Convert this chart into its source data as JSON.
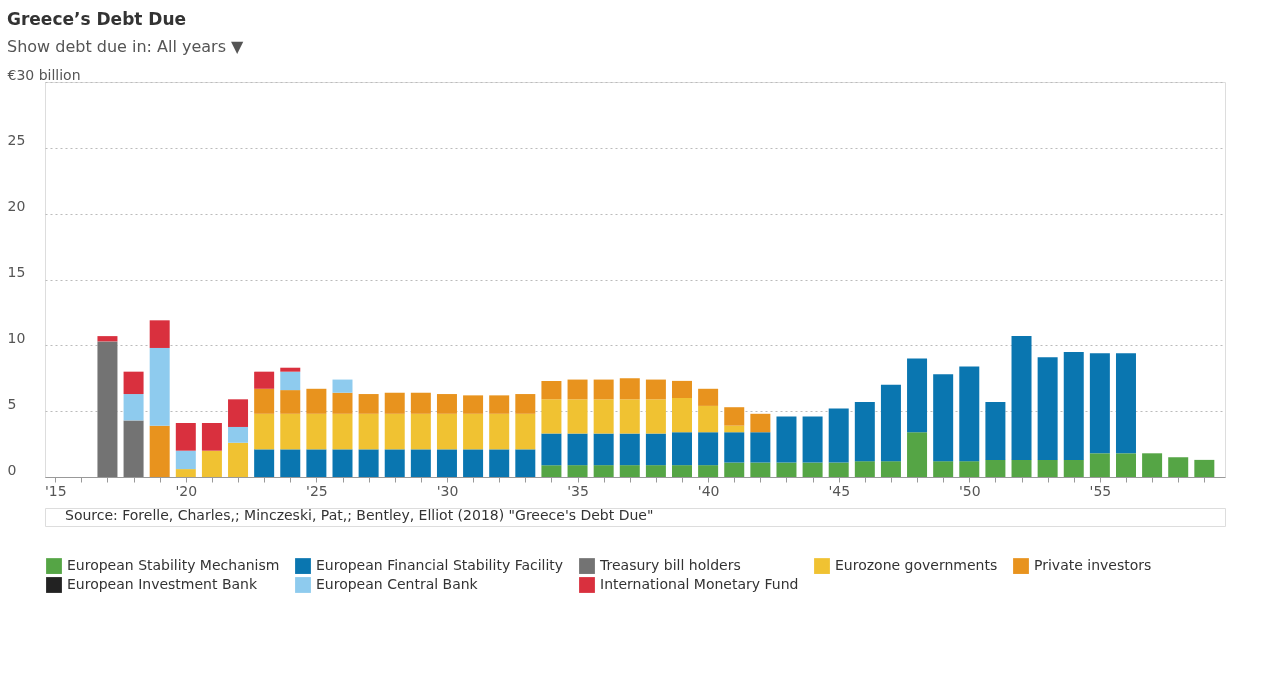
{
  "chart_data": {
    "type": "bar",
    "title": "Greece’s Debt Due",
    "subtitle": "Show debt due in: All years ▼",
    "stacked": true,
    "x": [
      2017,
      2018,
      2019,
      2020,
      2021,
      2022,
      2023,
      2024,
      2025,
      2026,
      2027,
      2028,
      2029,
      2030,
      2031,
      2032,
      2033,
      2034,
      2035,
      2036,
      2037,
      2038,
      2039,
      2040,
      2041,
      2042,
      2043,
      2044,
      2045,
      2046,
      2047,
      2048,
      2049,
      2050,
      2051,
      2052,
      2053,
      2054,
      2055,
      2056,
      2057,
      2058,
      2059
    ],
    "series": [
      {
        "name": "European Stability Mechanism",
        "color": "#55a545",
        "values": [
          null,
          null,
          null,
          null,
          null,
          null,
          null,
          null,
          null,
          null,
          null,
          null,
          null,
          null,
          null,
          null,
          null,
          0.9,
          0.9,
          0.9,
          0.9,
          0.9,
          0.9,
          0.9,
          1.1,
          1.1,
          1.1,
          1.1,
          1.1,
          1.2,
          1.2,
          3.4,
          1.2,
          1.2,
          1.3,
          1.3,
          1.3,
          1.3,
          1.8,
          1.8,
          1.8,
          1.5,
          1.3
        ]
      },
      {
        "name": "European Financial Stability Facility",
        "color": "#0a76b0",
        "values": [
          null,
          null,
          null,
          null,
          null,
          null,
          2.1,
          2.1,
          2.1,
          2.1,
          2.1,
          2.1,
          2.1,
          2.1,
          2.1,
          2.1,
          2.1,
          2.4,
          2.4,
          2.4,
          2.4,
          2.4,
          2.5,
          2.5,
          2.3,
          2.3,
          3.5,
          3.5,
          4.1,
          4.5,
          5.8,
          5.6,
          6.6,
          7.2,
          4.4,
          9.4,
          7.8,
          8.2,
          7.6,
          7.6,
          null,
          null,
          null
        ]
      },
      {
        "name": "Treasury bill holders",
        "color": "#737373",
        "values": [
          10.3,
          4.3,
          null,
          null,
          null,
          null,
          null,
          null,
          null,
          null,
          null,
          null,
          null,
          null,
          null,
          null,
          null,
          null,
          null,
          null,
          null,
          null,
          null,
          null,
          null,
          null,
          null,
          null,
          null,
          null,
          null,
          null,
          null,
          null,
          null,
          null,
          null,
          null,
          null,
          null,
          null,
          null,
          null
        ]
      },
      {
        "name": "Eurozone governments",
        "color": "#f0c232",
        "values": [
          null,
          null,
          null,
          0.6,
          2.0,
          2.6,
          2.7,
          2.7,
          2.7,
          2.7,
          2.7,
          2.7,
          2.7,
          2.7,
          2.7,
          2.7,
          2.7,
          2.6,
          2.6,
          2.6,
          2.6,
          2.6,
          2.6,
          2.0,
          0.5,
          null,
          null,
          null,
          null,
          null,
          null,
          null,
          null,
          null,
          null,
          null,
          null,
          null,
          null,
          null,
          null,
          null,
          null
        ]
      },
      {
        "name": "Private investors",
        "color": "#e8931e",
        "values": [
          null,
          null,
          3.9,
          null,
          null,
          null,
          1.9,
          1.8,
          1.9,
          1.6,
          1.5,
          1.6,
          1.6,
          1.5,
          1.4,
          1.4,
          1.5,
          1.4,
          1.5,
          1.5,
          1.6,
          1.5,
          1.3,
          1.3,
          1.4,
          1.4,
          null,
          null,
          null,
          null,
          null,
          null,
          null,
          null,
          null,
          null,
          null,
          null,
          null,
          null,
          null,
          null,
          null
        ]
      },
      {
        "name": "European Investment Bank",
        "color": "#222222",
        "values": [
          null,
          null,
          null,
          null,
          null,
          null,
          null,
          null,
          null,
          null,
          null,
          null,
          null,
          null,
          null,
          null,
          null,
          null,
          null,
          null,
          null,
          null,
          null,
          null,
          null,
          null,
          null,
          null,
          null,
          null,
          null,
          null,
          null,
          null,
          null,
          null,
          null,
          null,
          null,
          null,
          null,
          null,
          null
        ]
      },
      {
        "name": "European Central Bank",
        "color": "#8ecbee",
        "values": [
          null,
          2.0,
          5.9,
          1.4,
          null,
          1.2,
          null,
          1.4,
          null,
          1.0,
          null,
          null,
          null,
          null,
          null,
          null,
          null,
          null,
          null,
          null,
          null,
          null,
          null,
          null,
          null,
          null,
          null,
          null,
          null,
          null,
          null,
          null,
          null,
          null,
          null,
          null,
          null,
          null,
          null,
          null,
          null,
          null,
          null
        ]
      },
      {
        "name": "International Monetary Fund",
        "color": "#d9303e",
        "values": [
          0.4,
          1.7,
          2.1,
          2.1,
          2.1,
          2.1,
          1.3,
          0.3,
          null,
          null,
          null,
          null,
          null,
          null,
          null,
          null,
          null,
          null,
          null,
          null,
          null,
          null,
          null,
          null,
          null,
          null,
          null,
          null,
          null,
          null,
          null,
          null,
          null,
          null,
          null,
          null,
          null,
          null,
          null,
          null,
          null,
          null,
          null
        ]
      }
    ],
    "xlim": [
      2014.8,
      2059.6
    ],
    "xticks": [
      {
        "value": 2015,
        "label": "'15"
      },
      {
        "value": 2016,
        "label": null
      },
      {
        "value": 2017,
        "label": null
      },
      {
        "value": 2018,
        "label": null
      },
      {
        "value": 2019,
        "label": null
      },
      {
        "value": 2020,
        "label": "'20"
      },
      {
        "value": 2021,
        "label": null
      },
      {
        "value": 2022,
        "label": null
      },
      {
        "value": 2023,
        "label": null
      },
      {
        "value": 2024,
        "label": null
      },
      {
        "value": 2025,
        "label": "'25"
      },
      {
        "value": 2026,
        "label": null
      },
      {
        "value": 2027,
        "label": null
      },
      {
        "value": 2028,
        "label": null
      },
      {
        "value": 2029,
        "label": null
      },
      {
        "value": 2030,
        "label": "'30"
      },
      {
        "value": 2031,
        "label": null
      },
      {
        "value": 2032,
        "label": null
      },
      {
        "value": 2033,
        "label": null
      },
      {
        "value": 2034,
        "label": null
      },
      {
        "value": 2035,
        "label": "'35"
      },
      {
        "value": 2036,
        "label": null
      },
      {
        "value": 2037,
        "label": null
      },
      {
        "value": 2038,
        "label": null
      },
      {
        "value": 2039,
        "label": null
      },
      {
        "value": 2040,
        "label": "'40"
      },
      {
        "value": 2041,
        "label": null
      },
      {
        "value": 2042,
        "label": null
      },
      {
        "value": 2043,
        "label": null
      },
      {
        "value": 2044,
        "label": null
      },
      {
        "value": 2045,
        "label": "'45"
      },
      {
        "value": 2046,
        "label": null
      },
      {
        "value": 2047,
        "label": null
      },
      {
        "value": 2048,
        "label": null
      },
      {
        "value": 2049,
        "label": null
      },
      {
        "value": 2050,
        "label": "'50"
      },
      {
        "value": 2051,
        "label": null
      },
      {
        "value": 2052,
        "label": null
      },
      {
        "value": 2053,
        "label": null
      },
      {
        "value": 2054,
        "label": null
      },
      {
        "value": 2055,
        "label": "'55"
      },
      {
        "value": 2056,
        "label": null
      },
      {
        "value": 2057,
        "label": null
      },
      {
        "value": 2058,
        "label": null
      },
      {
        "value": 2059,
        "label": null
      }
    ],
    "ylim": [
      0,
      30
    ],
    "yticks": [
      0,
      5,
      10,
      15,
      20,
      25,
      {
        "value": 30,
        "label": "€30 billion"
      }
    ],
    "grid": "y",
    "legend": "bottom",
    "annotations": [
      "Source: Forelle, Charles,; Minczeski, Pat,; Bentley, Elliot (2018) \"Greece's Debt Due\""
    ]
  }
}
